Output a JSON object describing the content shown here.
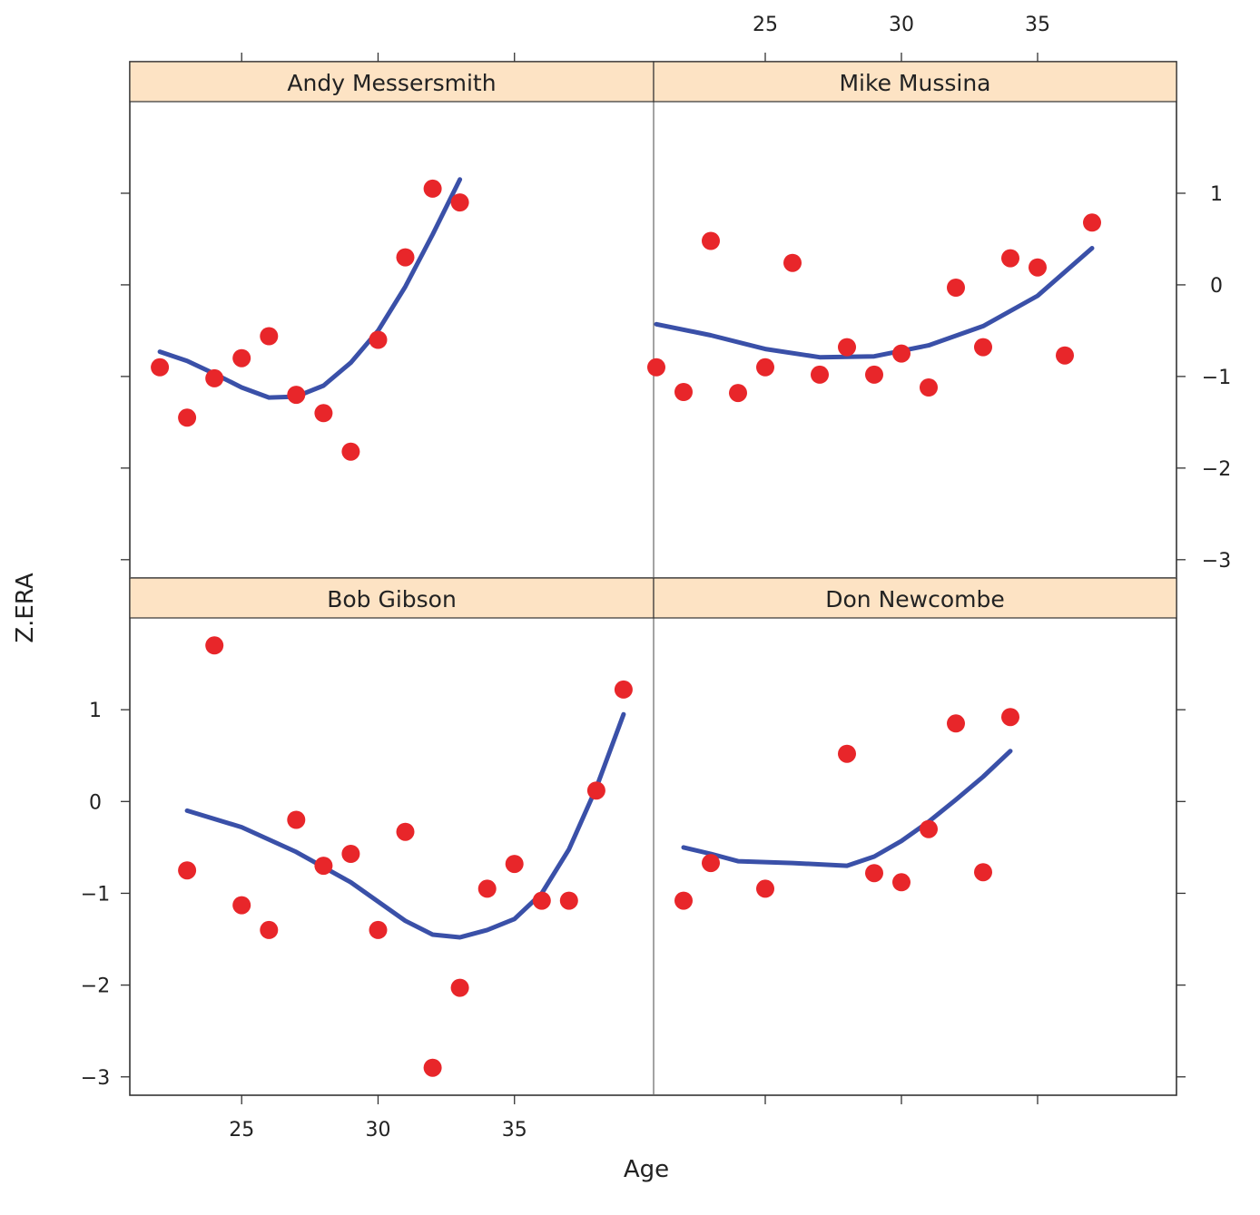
{
  "chart_data": {
    "type": "scatter",
    "xlabel": "Age",
    "ylabel": "Z.ERA",
    "xlim": [
      20.9,
      40.1
    ],
    "ylim": [
      -3.2,
      2.0
    ],
    "x_ticks": [
      25,
      30,
      35
    ],
    "y_ticks": [
      -3,
      -2,
      -1,
      0,
      1
    ],
    "y_tick_labels": [
      "−3",
      "−2",
      "−1",
      "0",
      "1"
    ],
    "grid": false,
    "colors": {
      "points": "#e8262a",
      "smooth": "#3a50a8",
      "strip": "#fde3c4",
      "frame": "#333333"
    },
    "panels": [
      {
        "name": "Bob Gibson",
        "points": [
          [
            23,
            -0.75
          ],
          [
            24,
            1.7
          ],
          [
            25,
            -1.13
          ],
          [
            26,
            -1.4
          ],
          [
            27,
            -0.2
          ],
          [
            28,
            -0.7
          ],
          [
            29,
            -0.57
          ],
          [
            30,
            -1.4
          ],
          [
            31,
            -0.33
          ],
          [
            32,
            -2.9
          ],
          [
            33,
            -2.03
          ],
          [
            34,
            -0.95
          ],
          [
            35,
            -0.68
          ],
          [
            36,
            -1.08
          ],
          [
            37,
            -1.08
          ],
          [
            38,
            0.12
          ],
          [
            39,
            1.22
          ]
        ],
        "smooth": [
          [
            23,
            -0.1
          ],
          [
            25,
            -0.28
          ],
          [
            27,
            -0.55
          ],
          [
            29,
            -0.88
          ],
          [
            31,
            -1.3
          ],
          [
            32,
            -1.45
          ],
          [
            33,
            -1.48
          ],
          [
            34,
            -1.4
          ],
          [
            35,
            -1.28
          ],
          [
            36,
            -1.0
          ],
          [
            37,
            -0.52
          ],
          [
            38,
            0.15
          ],
          [
            39,
            0.95
          ]
        ]
      },
      {
        "name": "Don Newcombe",
        "points": [
          [
            22,
            -1.08
          ],
          [
            23,
            -0.67
          ],
          [
            25,
            -0.95
          ],
          [
            28,
            0.52
          ],
          [
            29,
            -0.78
          ],
          [
            30,
            -0.88
          ],
          [
            31,
            -0.3
          ],
          [
            32,
            0.85
          ],
          [
            33,
            -0.77
          ],
          [
            34,
            0.92
          ]
        ],
        "smooth": [
          [
            22,
            -0.5
          ],
          [
            23,
            -0.57
          ],
          [
            24,
            -0.65
          ],
          [
            26,
            -0.67
          ],
          [
            28,
            -0.7
          ],
          [
            29,
            -0.6
          ],
          [
            30,
            -0.43
          ],
          [
            31,
            -0.22
          ],
          [
            32,
            0.02
          ],
          [
            33,
            0.27
          ],
          [
            34,
            0.55
          ]
        ]
      },
      {
        "name": "Andy Messersmith",
        "points": [
          [
            22,
            -0.9
          ],
          [
            23,
            -1.45
          ],
          [
            24,
            -1.02
          ],
          [
            25,
            -0.8
          ],
          [
            26,
            -0.56
          ],
          [
            27,
            -1.2
          ],
          [
            28,
            -1.4
          ],
          [
            29,
            -1.82
          ],
          [
            30,
            -0.6
          ],
          [
            31,
            0.3
          ],
          [
            32,
            1.05
          ],
          [
            33,
            0.9
          ]
        ],
        "smooth": [
          [
            22,
            -0.73
          ],
          [
            23,
            -0.83
          ],
          [
            24,
            -0.97
          ],
          [
            25,
            -1.12
          ],
          [
            26,
            -1.23
          ],
          [
            27,
            -1.22
          ],
          [
            28,
            -1.1
          ],
          [
            29,
            -0.85
          ],
          [
            30,
            -0.5
          ],
          [
            31,
            -0.02
          ],
          [
            32,
            0.55
          ],
          [
            33,
            1.15
          ]
        ]
      },
      {
        "name": "Mike Mussina",
        "points": [
          [
            21,
            -0.9
          ],
          [
            22,
            -1.17
          ],
          [
            23,
            0.48
          ],
          [
            24,
            -1.18
          ],
          [
            25,
            -0.9
          ],
          [
            26,
            0.24
          ],
          [
            27,
            -0.98
          ],
          [
            28,
            -0.68
          ],
          [
            29,
            -0.98
          ],
          [
            30,
            -0.75
          ],
          [
            31,
            -1.12
          ],
          [
            32,
            -0.03
          ],
          [
            33,
            -0.68
          ],
          [
            34,
            0.29
          ],
          [
            35,
            0.19
          ],
          [
            36,
            -0.77
          ],
          [
            37,
            0.68
          ]
        ],
        "smooth": [
          [
            21,
            -0.43
          ],
          [
            23,
            -0.55
          ],
          [
            25,
            -0.7
          ],
          [
            27,
            -0.79
          ],
          [
            29,
            -0.78
          ],
          [
            31,
            -0.66
          ],
          [
            33,
            -0.45
          ],
          [
            35,
            -0.12
          ],
          [
            37,
            0.4
          ]
        ]
      }
    ]
  }
}
